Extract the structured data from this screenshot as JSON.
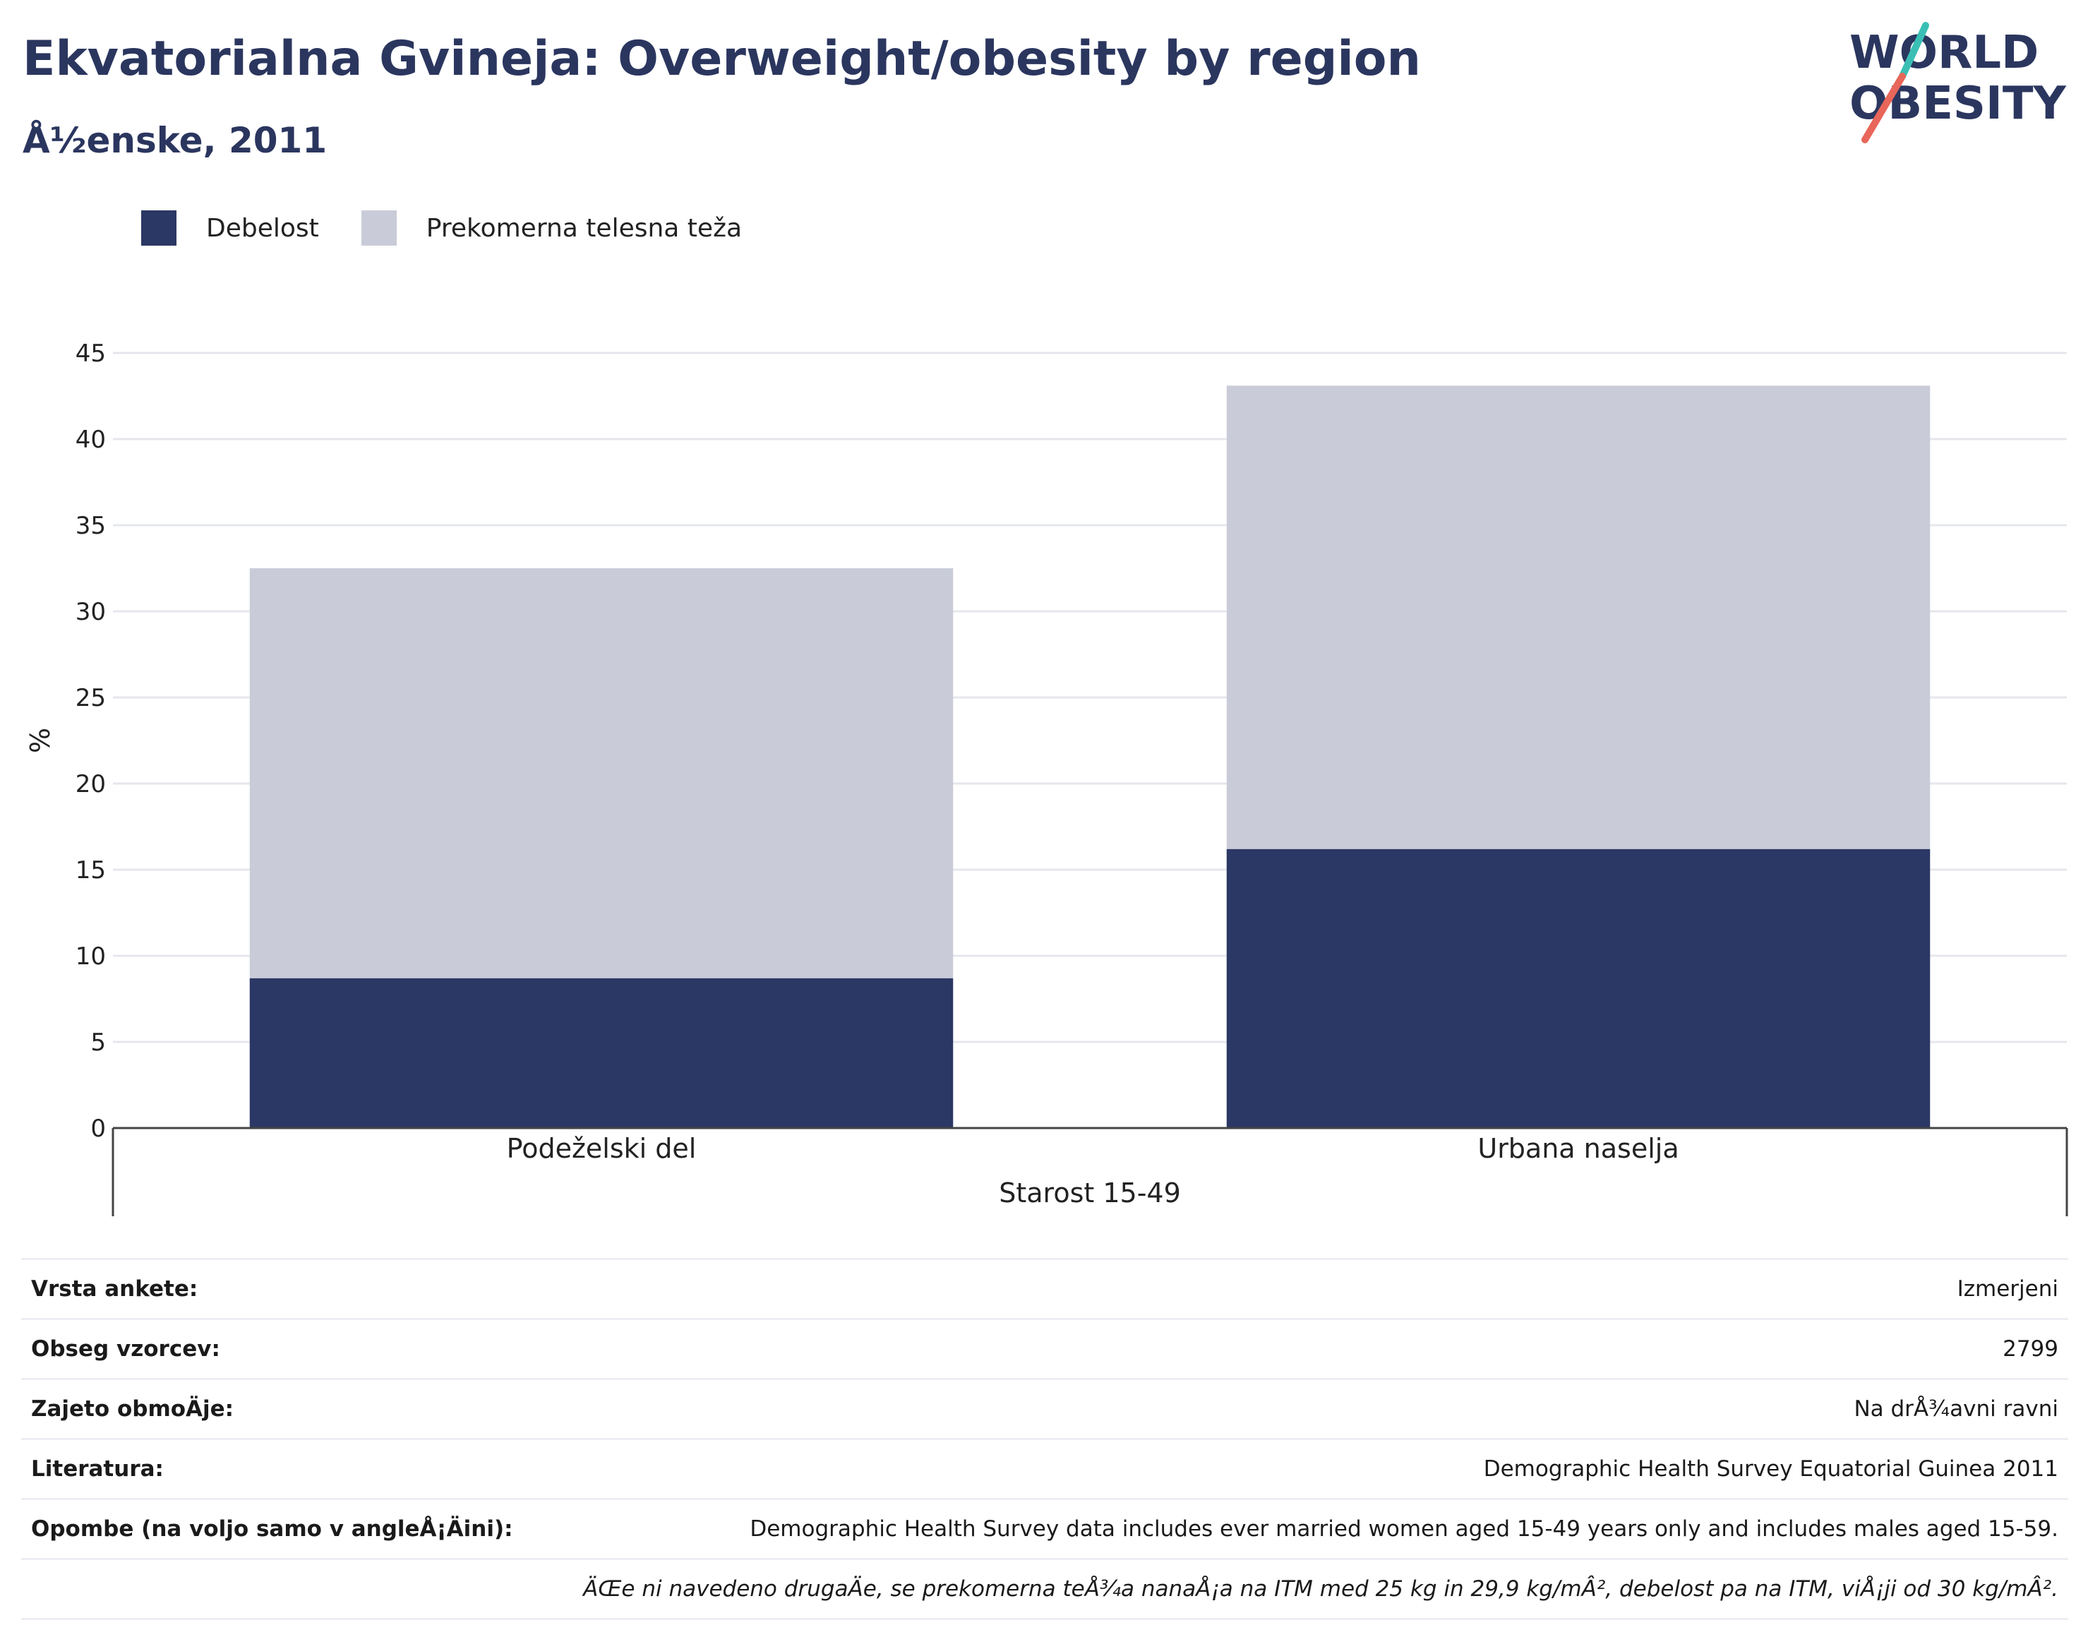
{
  "header": {
    "title": "Ekvatorialna Gvineja: Overweight/obesity by region",
    "subtitle": "Å½enske, 2011",
    "logo_line1": "WORLD",
    "logo_line2": "OBESITY"
  },
  "legend": {
    "obesity_label": "Debelost",
    "overweight_label": "Prekomerna telesna teža"
  },
  "colors": {
    "obesity": "#2b3764",
    "overweight": "#c9ccd8",
    "title": "#2b365f",
    "logo_teal": "#3bbfb5",
    "logo_red": "#e8665a"
  },
  "chart_data": {
    "type": "bar",
    "stacked": true,
    "categories": [
      "Podeželski del",
      "Urbana naselja"
    ],
    "group_label": "Starost 15-49",
    "series": [
      {
        "name": "Debelost",
        "values": [
          8.7,
          16.2
        ]
      },
      {
        "name": "Prekomerna telesna teža",
        "values": [
          23.8,
          26.9
        ]
      }
    ],
    "ylabel": "%",
    "ylim": [
      0,
      45
    ],
    "yticks": [
      0,
      5,
      10,
      15,
      20,
      25,
      30,
      35,
      40,
      45
    ],
    "grid": true,
    "legend_position": "top-left"
  },
  "meta": {
    "rows": [
      {
        "label": "Vrsta ankete:",
        "value": "Izmerjeni"
      },
      {
        "label": "Obseg vzorcev:",
        "value": "2799"
      },
      {
        "label": "Zajeto obmoÄje:",
        "value": "Na drÅ¾avni ravni"
      },
      {
        "label": "Literatura:",
        "value": "Demographic Health Survey Equatorial Guinea 2011"
      },
      {
        "label": "Opombe (na voljo samo v angleÅ¡Äini):",
        "value": "Demographic Health Survey data includes ever married women aged 15-49 years only and includes males aged 15-59."
      }
    ],
    "note": "ÄŒe ni navedeno drugaÄe, se prekomerna teÅ¾a nanaÅ¡a na ITM med 25 kg in 29,9 kg/mÂ², debelost pa na ITM, viÅ¡ji od 30 kg/mÂ²."
  }
}
